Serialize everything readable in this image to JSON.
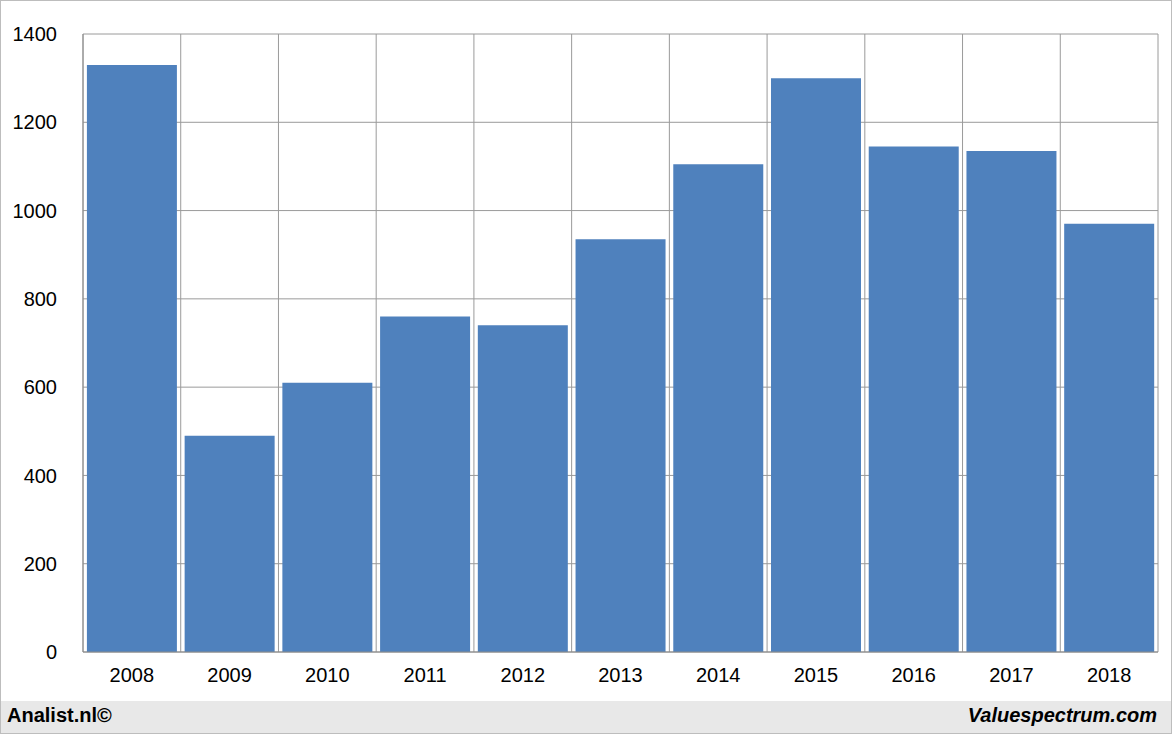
{
  "chart_data": {
    "type": "bar",
    "categories": [
      "2008",
      "2009",
      "2010",
      "2011",
      "2012",
      "2013",
      "2014",
      "2015",
      "2016",
      "2017",
      "2018"
    ],
    "values": [
      1330,
      490,
      610,
      760,
      740,
      935,
      1105,
      1300,
      1145,
      1135,
      970
    ],
    "color": "#4f81bd",
    "ylim": [
      0,
      1400
    ],
    "yticks": [
      0,
      200,
      400,
      600,
      800,
      1000,
      1200,
      1400
    ],
    "grid": true,
    "annotations": [
      "Analist.nl©",
      "Valuespectrum.com"
    ]
  }
}
